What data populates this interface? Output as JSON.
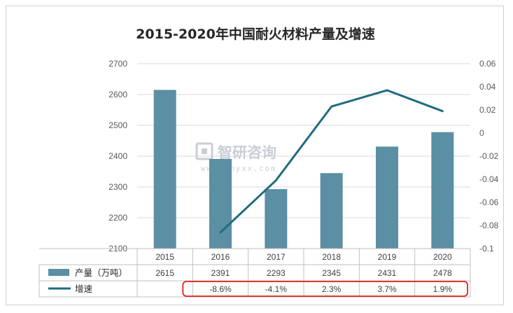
{
  "chart_data": {
    "type": "bar",
    "title": "2015-2020年中国耐火材料产量及增速",
    "categories": [
      "2015",
      "2016",
      "2017",
      "2018",
      "2019",
      "2020"
    ],
    "series": [
      {
        "name": "产量（万吨）",
        "type": "bar",
        "axis": "left",
        "values": [
          2615,
          2391,
          2293,
          2345,
          2431,
          2478
        ],
        "color": "#5b8fa3"
      },
      {
        "name": "增速",
        "type": "line",
        "axis": "right",
        "values": [
          null,
          -0.086,
          -0.041,
          0.023,
          0.037,
          0.019
        ],
        "color": "#1f6b7f"
      }
    ],
    "y_left": {
      "min": 2100,
      "max": 2700,
      "step": 100,
      "ticks": [
        "2100",
        "2200",
        "2300",
        "2400",
        "2500",
        "2600",
        "2700"
      ]
    },
    "y_right": {
      "min": -0.1,
      "max": 0.06,
      "step": 0.02,
      "ticks": [
        "-0.1",
        "-0.08",
        "-0.06",
        "-0.04",
        "-0.02",
        "0",
        "0.02",
        "0.04",
        "0.06"
      ]
    },
    "table": {
      "rows": [
        {
          "label": "产量（万吨）",
          "cells": [
            "2615",
            "2391",
            "2293",
            "2345",
            "2431",
            "2478"
          ]
        },
        {
          "label": "增速",
          "cells": [
            "",
            "-8.6%",
            "-4.1%",
            "2.3%",
            "3.7%",
            "1.9%"
          ]
        }
      ]
    },
    "grid": true,
    "highlight_color": "#e0201b"
  },
  "watermark": {
    "text": "智研咨询",
    "url": "www.chyxx.com"
  }
}
